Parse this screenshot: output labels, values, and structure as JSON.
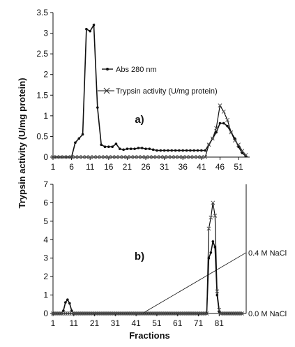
{
  "shared_ylabel": "Trypsin activity (U/mg protein)",
  "chart_data": [
    {
      "type": "line",
      "panel_label": "a)",
      "ylim": [
        0,
        3.5
      ],
      "yticks": [
        "0",
        "0.5",
        "1",
        "1.5",
        "2",
        "2.5",
        "3",
        "3.5"
      ],
      "xlim": [
        1,
        54
      ],
      "xticks": [
        "1",
        "6",
        "11",
        "16",
        "21",
        "26",
        "31",
        "36",
        "41",
        "46",
        "51"
      ],
      "xlabel": "",
      "legend": [
        "Abs 280 nm",
        "Trypsin activity (U/mg protein)"
      ],
      "legend_position": "center",
      "series": [
        {
          "name": "Abs 280 nm",
          "marker": "dot",
          "x": [
            1,
            2,
            3,
            4,
            5,
            6,
            7,
            8,
            9,
            10,
            11,
            12,
            13,
            14,
            15,
            16,
            17,
            18,
            19,
            20,
            21,
            22,
            23,
            24,
            25,
            26,
            27,
            28,
            29,
            30,
            31,
            32,
            33,
            34,
            35,
            36,
            37,
            38,
            39,
            40,
            41,
            42,
            43,
            44,
            45,
            46,
            47,
            48,
            49,
            50,
            51,
            52,
            53
          ],
          "values": [
            0,
            0,
            0,
            0,
            0,
            0,
            0.35,
            0.45,
            0.55,
            3.1,
            3.05,
            3.2,
            1.2,
            0.3,
            0.25,
            0.25,
            0.25,
            0.32,
            0.2,
            0.18,
            0.2,
            0.2,
            0.2,
            0.22,
            0.22,
            0.2,
            0.2,
            0.18,
            0.16,
            0.16,
            0.16,
            0.16,
            0.16,
            0.16,
            0.16,
            0.16,
            0.16,
            0.16,
            0.16,
            0.16,
            0.16,
            0.16,
            0.3,
            0.45,
            0.6,
            0.82,
            0.82,
            0.75,
            0.6,
            0.45,
            0.25,
            0.1,
            0.02
          ]
        },
        {
          "name": "Trypsin activity (U/mg protein)",
          "marker": "x",
          "x": [
            1,
            2,
            3,
            4,
            5,
            6,
            7,
            8,
            9,
            10,
            11,
            12,
            13,
            14,
            15,
            16,
            17,
            18,
            19,
            20,
            21,
            22,
            23,
            24,
            25,
            26,
            27,
            28,
            29,
            30,
            31,
            32,
            33,
            34,
            35,
            36,
            37,
            38,
            39,
            40,
            41,
            42,
            43,
            44,
            45,
            46,
            47,
            48,
            49,
            50,
            51,
            52,
            53
          ],
          "values": [
            0,
            0,
            0,
            0,
            0,
            0,
            0,
            0,
            0,
            0,
            0,
            0,
            0,
            0,
            0,
            0,
            0,
            0,
            0,
            0,
            0,
            0,
            0,
            0,
            0,
            0,
            0,
            0,
            0,
            0,
            0,
            0,
            0,
            0,
            0,
            0,
            0,
            0,
            0,
            0,
            0,
            0,
            0.3,
            0.45,
            0.7,
            1.25,
            1.1,
            0.9,
            0.6,
            0.4,
            0.3,
            0.15,
            0.05
          ]
        }
      ]
    },
    {
      "type": "line",
      "panel_label": "b)",
      "ylim": [
        0,
        7
      ],
      "yticks": [
        "0",
        "1",
        "2",
        "3",
        "4",
        "5",
        "6",
        "7"
      ],
      "xlim": [
        1,
        94
      ],
      "xticks": [
        "1",
        "11",
        "21",
        "31",
        "41",
        "51",
        "61",
        "71",
        "81"
      ],
      "xlabel": "Fractions",
      "series": [
        {
          "name": "Abs 280 nm",
          "marker": "dot",
          "x": [
            1,
            2,
            3,
            4,
            5,
            6,
            7,
            8,
            9,
            10,
            11,
            12,
            13,
            14,
            15,
            16,
            17,
            18,
            19,
            20,
            21,
            22,
            23,
            24,
            25,
            26,
            27,
            28,
            29,
            30,
            31,
            32,
            33,
            34,
            35,
            36,
            37,
            38,
            39,
            40,
            41,
            42,
            43,
            44,
            45,
            46,
            47,
            48,
            49,
            50,
            51,
            52,
            53,
            54,
            55,
            56,
            57,
            58,
            59,
            60,
            61,
            62,
            63,
            64,
            65,
            66,
            67,
            68,
            69,
            70,
            71,
            72,
            73,
            74,
            75,
            76,
            77,
            78,
            79,
            80,
            81,
            82,
            83,
            84,
            85,
            86,
            87,
            88,
            89,
            90,
            91,
            92
          ],
          "values": [
            0,
            0,
            0,
            0,
            0,
            0.15,
            0.6,
            0.75,
            0.55,
            0.15,
            0,
            0,
            0,
            0,
            0,
            0,
            0,
            0,
            0,
            0,
            0,
            0,
            0,
            0,
            0,
            0,
            0,
            0,
            0,
            0,
            0,
            0,
            0,
            0,
            0,
            0,
            0,
            0,
            0,
            0,
            0,
            0,
            0,
            0,
            0,
            0,
            0,
            0,
            0,
            0,
            0,
            0,
            0,
            0,
            0,
            0,
            0,
            0,
            0,
            0,
            0,
            0,
            0,
            0,
            0,
            0,
            0,
            0,
            0,
            0,
            0,
            0,
            0,
            0,
            0,
            3.0,
            3.3,
            3.9,
            3.6,
            1.0,
            0.1,
            0,
            0,
            0,
            0,
            0,
            0,
            0,
            0,
            0,
            0,
            0
          ]
        },
        {
          "name": "Trypsin activity (U/mg protein)",
          "marker": "x",
          "x": [
            1,
            2,
            3,
            4,
            5,
            6,
            7,
            8,
            9,
            10,
            11,
            12,
            13,
            14,
            15,
            16,
            17,
            18,
            19,
            20,
            21,
            22,
            23,
            24,
            25,
            26,
            27,
            28,
            29,
            30,
            31,
            32,
            33,
            34,
            35,
            36,
            37,
            38,
            39,
            40,
            41,
            42,
            43,
            44,
            45,
            46,
            47,
            48,
            49,
            50,
            51,
            52,
            53,
            54,
            55,
            56,
            57,
            58,
            59,
            60,
            61,
            62,
            63,
            64,
            65,
            66,
            67,
            68,
            69,
            70,
            71,
            72,
            73,
            74,
            75,
            76,
            77,
            78,
            79,
            80,
            81,
            82,
            83,
            84,
            85,
            86,
            87,
            88,
            89,
            90,
            91,
            92
          ],
          "values": [
            0,
            0,
            0,
            0,
            0,
            0,
            0,
            0,
            0,
            0,
            0,
            0,
            0,
            0,
            0,
            0,
            0,
            0,
            0,
            0,
            0,
            0,
            0,
            0,
            0,
            0,
            0,
            0,
            0,
            0,
            0,
            0,
            0,
            0,
            0,
            0,
            0,
            0,
            0,
            0,
            0,
            0,
            0,
            0,
            0,
            0,
            0,
            0,
            0,
            0,
            0,
            0,
            0,
            0,
            0,
            0,
            0,
            0,
            0,
            0,
            0,
            0,
            0,
            0,
            0,
            0,
            0,
            0,
            0,
            0,
            0,
            0,
            0,
            0,
            0,
            4.6,
            5.2,
            6.0,
            5.3,
            1.2,
            0.2,
            0,
            0,
            0,
            0,
            0,
            0,
            0,
            0,
            0,
            0,
            0
          ]
        }
      ],
      "gradient": {
        "x": [
          44,
          94
        ],
        "y": [
          0,
          3.3
        ],
        "start_label": "0.0 M NaCl",
        "end_label": "0.4 M NaCl"
      }
    }
  ]
}
